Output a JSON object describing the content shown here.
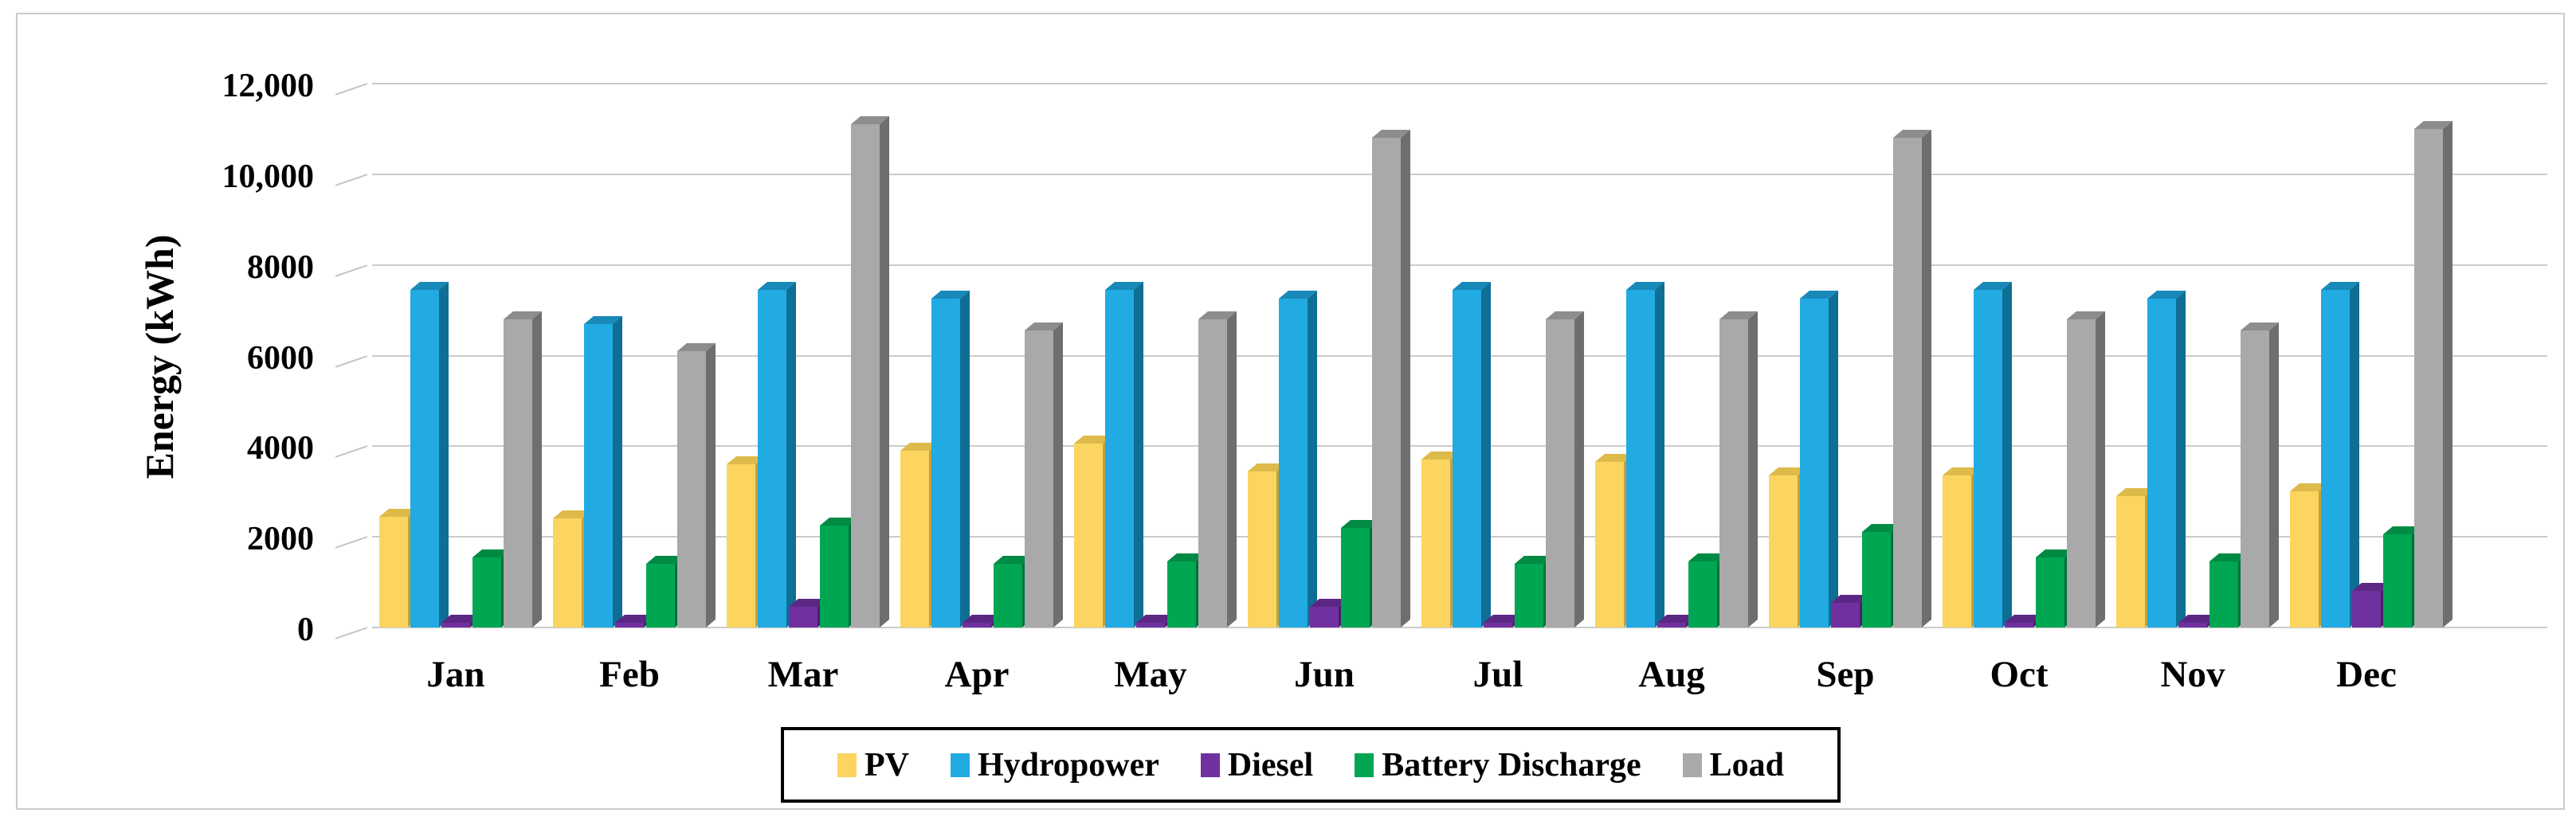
{
  "chart_data": {
    "type": "bar",
    "style": "3d-clustered-column",
    "title": "",
    "xlabel": "",
    "ylabel": "Energy (kWh)",
    "categories": [
      "Jan",
      "Feb",
      "Mar",
      "Apr",
      "May",
      "Jun",
      "Jul",
      "Aug",
      "Sep",
      "Oct",
      "Nov",
      "Dec"
    ],
    "series": [
      {
        "name": "PV",
        "color": "#FBD560",
        "side_color": "#C4A13B",
        "top_color": "#DDBA49",
        "values": [
          2450,
          2400,
          3600,
          3900,
          4050,
          3450,
          3700,
          3650,
          3350,
          3350,
          2900,
          3000
        ]
      },
      {
        "name": "Hydropower",
        "color": "#22AAE2",
        "side_color": "#0F6E94",
        "top_color": "#1889B8",
        "values": [
          7450,
          6700,
          7450,
          7250,
          7450,
          7250,
          7450,
          7450,
          7250,
          7450,
          7250,
          7450
        ]
      },
      {
        "name": "Diesel",
        "color": "#7030A0",
        "side_color": "#4A1E6E",
        "top_color": "#5C2684",
        "values": [
          100,
          100,
          450,
          100,
          100,
          450,
          100,
          100,
          550,
          100,
          100,
          800
        ]
      },
      {
        "name": "Battery Discharge",
        "color": "#00A651",
        "side_color": "#00713A",
        "top_color": "#008A44",
        "values": [
          1550,
          1400,
          2250,
          1400,
          1450,
          2200,
          1400,
          1450,
          2100,
          1550,
          1450,
          2050
        ]
      },
      {
        "name": "Load",
        "color": "#A9A9A9",
        "side_color": "#6E6E6E",
        "top_color": "#8D8D8D",
        "values": [
          6800,
          6100,
          11100,
          6550,
          6800,
          10800,
          6800,
          6800,
          10800,
          6800,
          6550,
          11000
        ]
      }
    ],
    "y_axis": {
      "min": 0,
      "max": 12000,
      "tick_interval": 2000,
      "tick_labels": [
        "0",
        "2000",
        "4000",
        "6000",
        "8000",
        "10,000",
        "12,000"
      ]
    },
    "grid": true,
    "legend_position": "bottom",
    "legend_entries": [
      "PV",
      "Hydropower",
      "Diesel",
      "Battery Discharge",
      "Load"
    ],
    "colors": {
      "gridline": "#CBCBCB",
      "figure_border": "#CCCCCC",
      "text": "#000000",
      "legend_border": "#000000"
    }
  }
}
